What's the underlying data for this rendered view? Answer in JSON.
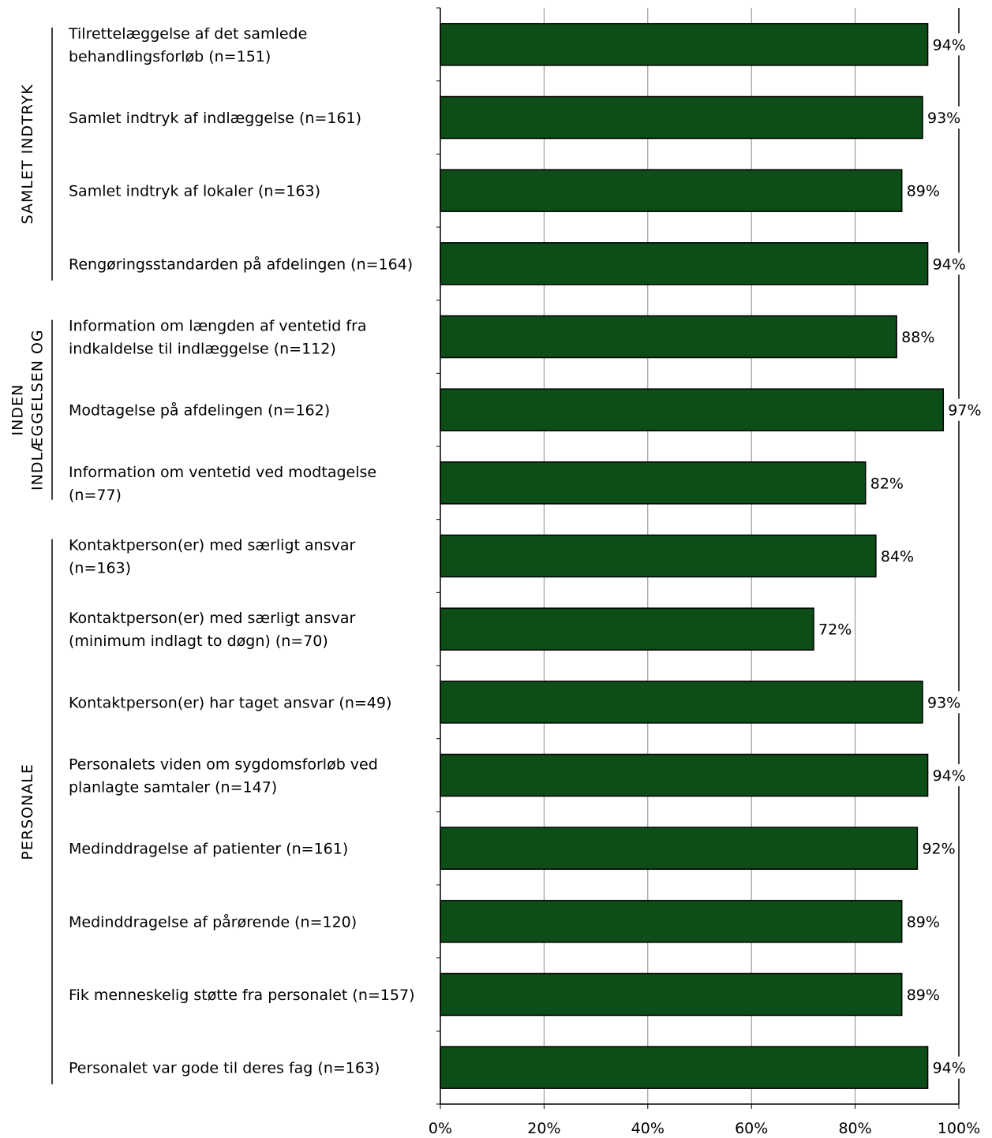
{
  "chart_data": {
    "type": "bar",
    "orientation": "horizontal",
    "categories": [
      [
        "Tilrettelæggelse af det samlede",
        "behandlingsforløb (n=151)"
      ],
      [
        "Samlet indtryk af indlæggelse (n=161)"
      ],
      [
        "Samlet indtryk af lokaler (n=163)"
      ],
      [
        "Rengøringsstandarden på afdelingen (n=164)"
      ],
      [
        "Information om længden af ventetid fra",
        "indkaldelse til indlæggelse (n=112)"
      ],
      [
        "Modtagelse på afdelingen (n=162)"
      ],
      [
        "Information om ventetid ved modtagelse",
        "(n=77)"
      ],
      [
        "Kontaktperson(er) med særligt ansvar",
        "(n=163)"
      ],
      [
        "Kontaktperson(er) med særligt ansvar",
        "(minimum indlagt to døgn) (n=70)"
      ],
      [
        "Kontaktperson(er) har taget ansvar (n=49)"
      ],
      [
        "Personalets viden om sygdomsforløb ved",
        "planlagte samtaler (n=147)"
      ],
      [
        "Medinddragelse af patienter (n=161)"
      ],
      [
        "Medinddragelse af pårørende (n=120)"
      ],
      [
        "Fik menneskelig støtte fra personalet (n=157)"
      ],
      [
        "Personalet var gode til deres fag (n=163)"
      ]
    ],
    "values": [
      94,
      93,
      89,
      94,
      88,
      97,
      82,
      84,
      72,
      93,
      94,
      92,
      89,
      89,
      94
    ],
    "value_labels": [
      "94%",
      "93%",
      "89%",
      "94%",
      "88%",
      "97%",
      "82%",
      "84%",
      "72%",
      "93%",
      "94%",
      "92%",
      "89%",
      "89%",
      "94%"
    ],
    "groups": [
      {
        "lines": [
          "SAMLET INDTRYK"
        ],
        "first": 0,
        "last": 3
      },
      {
        "lines": [
          "INDEN",
          "INDLÆGGELSEN OG"
        ],
        "first": 4,
        "last": 6
      },
      {
        "lines": [
          "PERSONALE"
        ],
        "first": 7,
        "last": 14
      }
    ],
    "xlim": [
      0,
      100
    ],
    "xticks": [
      "0%",
      "20%",
      "40%",
      "60%",
      "80%",
      "100%"
    ],
    "grid": true,
    "bar_color": "#0d4d17"
  }
}
